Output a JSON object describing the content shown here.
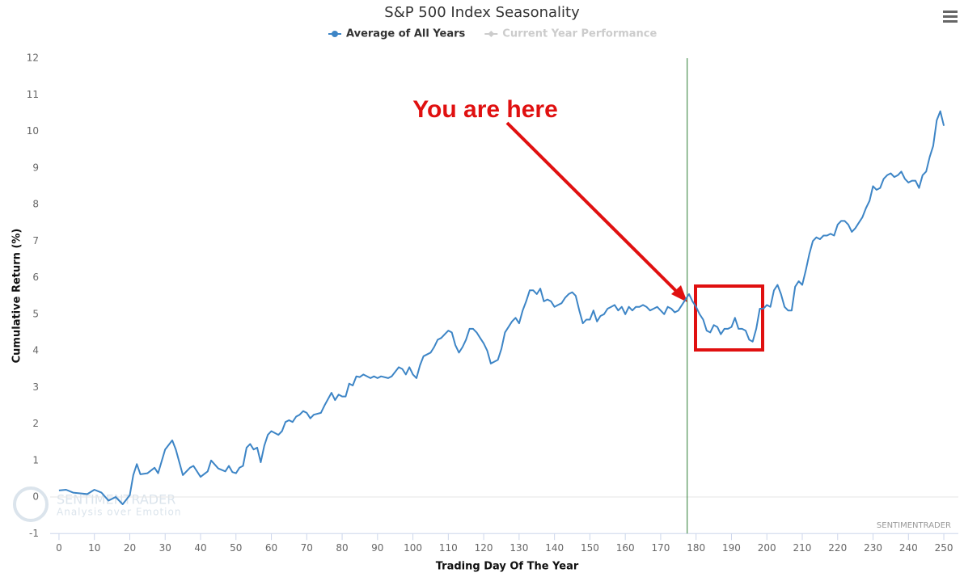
{
  "chart_data": {
    "type": "line",
    "title": "S&P 500 Index Seasonality",
    "x_label": "Trading Day Of The Year",
    "y_label": "Cumulative Return (%)",
    "annotation": "You are here",
    "watermark": "SENTIMENTRADER",
    "watermark_tagline": "Analysis over Emotion",
    "credit": "SENTIMENTRADER",
    "xlim": [
      -2.5,
      254.1
    ],
    "ylim": [
      -1,
      12
    ],
    "xticks": [
      0,
      10,
      20,
      30,
      40,
      50,
      60,
      70,
      80,
      90,
      100,
      110,
      120,
      130,
      140,
      150,
      160,
      170,
      180,
      190,
      200,
      210,
      220,
      230,
      240,
      250
    ],
    "yticks": [
      -1,
      0,
      1,
      2,
      3,
      4,
      5,
      6,
      7,
      8,
      9,
      10,
      11,
      12
    ],
    "zero_line": true,
    "vline_x": 177.5,
    "vline_color": "#2e7d32",
    "hidden_series": {
      "name": "Current Year Performance",
      "color": "#cccccc"
    },
    "x": [
      0,
      2,
      4,
      6,
      8,
      10,
      12,
      14,
      16,
      18,
      20,
      21,
      22,
      23,
      25,
      27,
      28,
      30,
      32,
      33,
      35,
      37,
      38,
      40,
      42,
      43,
      45,
      47,
      48,
      49,
      50,
      51,
      52,
      53,
      54,
      55,
      56,
      57,
      58,
      59,
      60,
      62,
      63,
      64,
      65,
      66,
      67,
      68,
      69,
      70,
      71,
      72,
      74,
      75,
      77,
      78,
      79,
      80,
      81,
      82,
      83,
      84,
      85,
      86,
      88,
      89,
      90,
      91,
      93,
      94,
      96,
      97,
      98,
      99,
      100,
      101,
      102,
      103,
      105,
      106,
      107,
      108,
      109,
      110,
      111,
      112,
      113,
      114,
      115,
      116,
      117,
      118,
      119,
      120,
      121,
      122,
      123,
      124,
      125,
      126,
      127,
      128,
      129,
      130,
      131,
      132,
      133,
      134,
      135,
      136,
      137,
      138,
      139,
      140,
      141,
      142,
      143,
      144,
      145,
      146,
      147,
      148,
      149,
      150,
      151,
      152,
      153,
      154,
      155,
      156,
      157,
      158,
      159,
      160,
      161,
      162,
      163,
      164,
      165,
      166,
      167,
      168,
      169,
      170,
      171,
      172,
      173,
      174,
      175,
      176,
      177,
      178,
      179,
      180,
      181,
      182,
      183,
      184,
      185,
      186,
      187,
      188,
      189,
      190,
      191,
      192,
      193,
      194,
      195,
      196,
      197,
      198,
      199,
      200,
      201,
      202,
      203,
      204,
      205,
      206,
      207,
      208,
      209,
      210,
      211,
      212,
      213,
      214,
      215,
      216,
      217,
      218,
      219,
      220,
      221,
      222,
      223,
      224,
      225,
      226,
      227,
      228,
      229,
      230,
      231,
      232,
      233,
      234,
      235,
      236,
      237,
      238,
      239,
      240,
      241,
      242,
      243,
      244,
      245,
      246,
      247,
      248,
      249,
      250
    ],
    "series": [
      {
        "name": "Average of All Years",
        "color": "#3d85c6",
        "values": [
          0.18,
          0.2,
          0.12,
          0.1,
          0.08,
          0.2,
          0.12,
          -0.1,
          0.0,
          -0.2,
          0.05,
          0.6,
          0.9,
          0.62,
          0.65,
          0.8,
          0.65,
          1.3,
          1.55,
          1.3,
          0.6,
          0.8,
          0.85,
          0.55,
          0.7,
          1.0,
          0.78,
          0.7,
          0.85,
          0.68,
          0.65,
          0.8,
          0.85,
          1.35,
          1.45,
          1.3,
          1.35,
          0.95,
          1.4,
          1.7,
          1.8,
          1.7,
          1.8,
          2.05,
          2.1,
          2.05,
          2.2,
          2.25,
          2.35,
          2.3,
          2.15,
          2.25,
          2.3,
          2.5,
          2.85,
          2.65,
          2.8,
          2.75,
          2.75,
          3.1,
          3.05,
          3.3,
          3.28,
          3.35,
          3.25,
          3.3,
          3.25,
          3.3,
          3.25,
          3.3,
          3.55,
          3.5,
          3.35,
          3.55,
          3.35,
          3.25,
          3.6,
          3.85,
          3.95,
          4.1,
          4.3,
          4.35,
          4.45,
          4.55,
          4.5,
          4.15,
          3.95,
          4.1,
          4.3,
          4.6,
          4.6,
          4.5,
          4.35,
          4.2,
          4.0,
          3.65,
          3.7,
          3.75,
          4.05,
          4.5,
          4.65,
          4.8,
          4.9,
          4.75,
          5.1,
          5.35,
          5.65,
          5.65,
          5.55,
          5.7,
          5.35,
          5.4,
          5.35,
          5.2,
          5.25,
          5.3,
          5.45,
          5.55,
          5.6,
          5.5,
          5.1,
          4.75,
          4.85,
          4.85,
          5.1,
          4.8,
          4.95,
          5.0,
          5.15,
          5.2,
          5.25,
          5.1,
          5.2,
          5.0,
          5.2,
          5.1,
          5.2,
          5.2,
          5.25,
          5.2,
          5.1,
          5.15,
          5.2,
          5.1,
          5.0,
          5.2,
          5.15,
          5.05,
          5.1,
          5.25,
          5.4,
          5.55,
          5.35,
          5.2,
          5.0,
          4.85,
          4.55,
          4.5,
          4.7,
          4.65,
          4.45,
          4.6,
          4.6,
          4.65,
          4.9,
          4.6,
          4.6,
          4.55,
          4.3,
          4.25,
          4.6,
          5.15,
          5.15,
          5.25,
          5.2,
          5.65,
          5.8,
          5.55,
          5.2,
          5.1,
          5.1,
          5.75,
          5.9,
          5.8,
          6.2,
          6.65,
          7.0,
          7.1,
          7.05,
          7.15,
          7.15,
          7.2,
          7.15,
          7.45,
          7.55,
          7.55,
          7.45,
          7.25,
          7.35,
          7.5,
          7.65,
          7.9,
          8.1,
          8.5,
          8.4,
          8.45,
          8.7,
          8.8,
          8.85,
          8.75,
          8.8,
          8.9,
          8.7,
          8.6,
          8.65,
          8.65,
          8.45,
          8.8,
          8.9,
          9.3,
          9.6,
          10.3,
          10.55,
          10.15
        ]
      }
    ]
  }
}
